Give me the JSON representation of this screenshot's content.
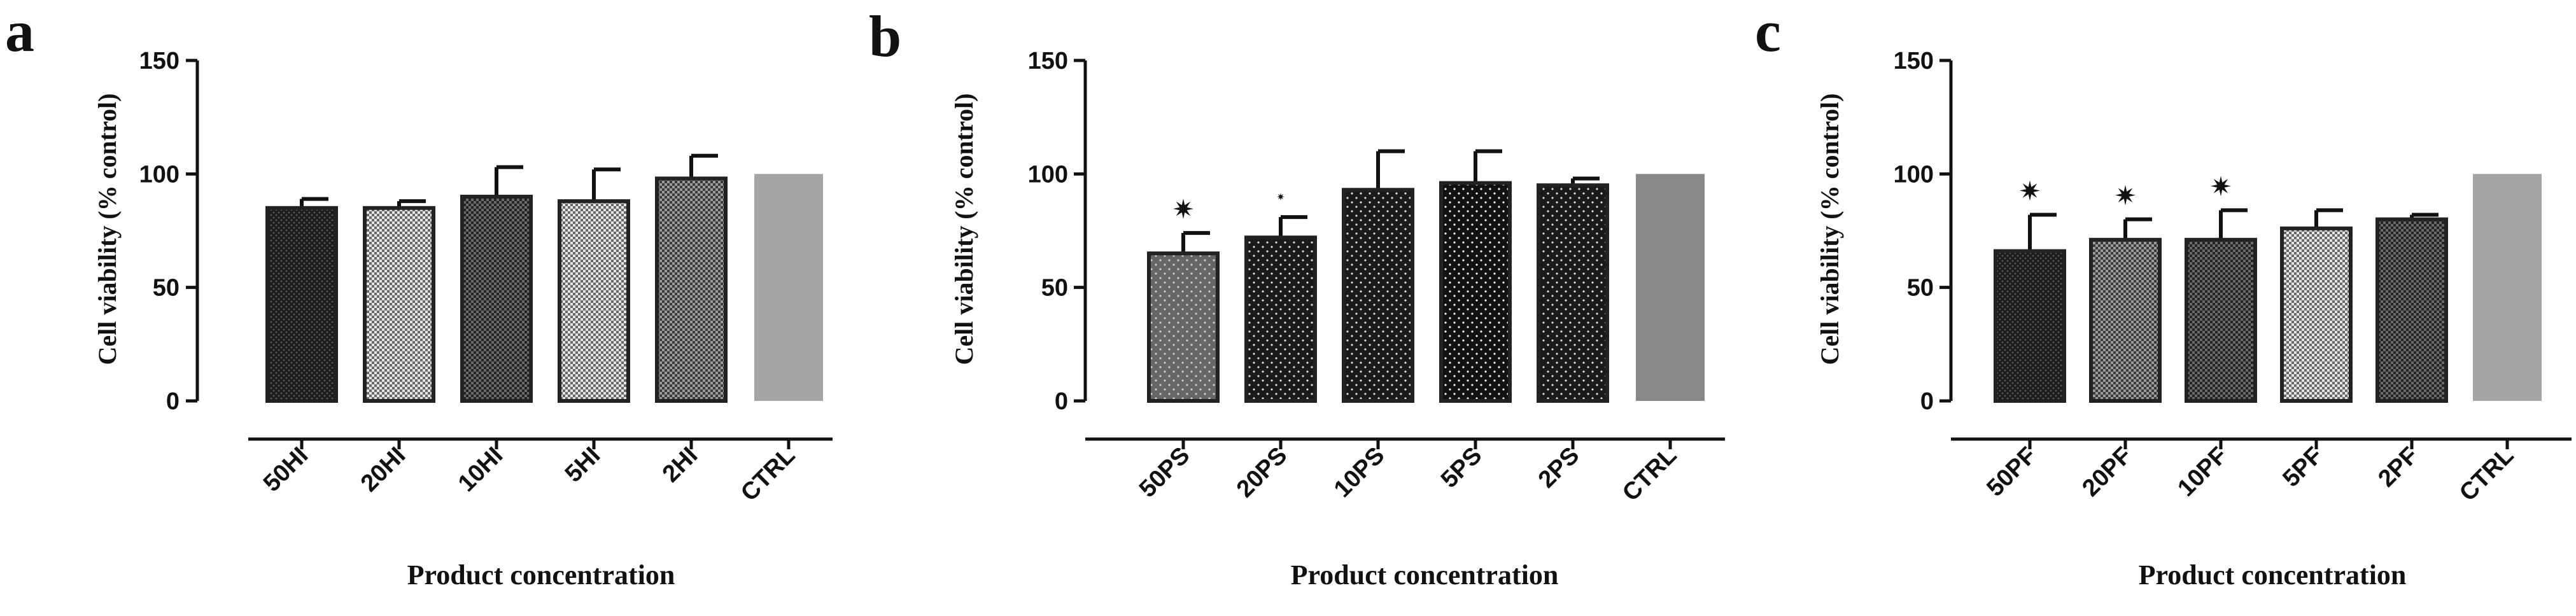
{
  "chart_data": [
    {
      "type": "bar",
      "panel": "a",
      "categories": [
        "50HI",
        "20HI",
        "10HI",
        "5HI",
        "2HI",
        "CTRL"
      ],
      "values": [
        85,
        85,
        90,
        88,
        98,
        100
      ],
      "errors": [
        4,
        3,
        13,
        14,
        10,
        0
      ],
      "significance": [
        "",
        "",
        "",
        "",
        "",
        ""
      ],
      "ylabel": "Cell viability (% control)",
      "xlabel": "Product concentration",
      "ylim": [
        0,
        150
      ],
      "yticks": [
        "0",
        "50",
        "100",
        "150"
      ],
      "bar_colors": [
        "#1c1c1c",
        "#a8a8a8",
        "#4a4a4a",
        "#c0c0c0",
        "#6e6e6e",
        "#a5a5a8"
      ],
      "bar_patterns": [
        "dots-dark",
        "checker-light",
        "checker-dark",
        "checker-light",
        "checker-mid",
        "solid"
      ],
      "grid": false
    },
    {
      "type": "bar",
      "panel": "b",
      "categories": [
        "50PS",
        "20PS",
        "10PS",
        "5PS",
        "2PS",
        "CTRL"
      ],
      "values": [
        65,
        72,
        93,
        96,
        95,
        100
      ],
      "errors": [
        9,
        9,
        17,
        14,
        3,
        0
      ],
      "significance": [
        "*",
        "*",
        "",
        "",
        "",
        ""
      ],
      "ylabel": "Cell viability (% control)",
      "xlabel": "Product concentration",
      "ylim": [
        0,
        150
      ],
      "yticks": [
        "0",
        "50",
        "100",
        "150"
      ],
      "bar_colors": [
        "#666666",
        "#1a1a1a",
        "#333333",
        "#d8d8d8",
        "#222222",
        "#888888"
      ],
      "bar_patterns": [
        "dots-sparse",
        "dots-sparse",
        "dots-sparse",
        "dots-sparse",
        "dots-sparse",
        "solid"
      ],
      "grid": false
    },
    {
      "type": "bar",
      "panel": "c",
      "categories": [
        "50PF",
        "20PF",
        "10PF",
        "5PF",
        "2PF",
        "CTRL"
      ],
      "values": [
        66,
        71,
        71,
        76,
        80,
        100
      ],
      "errors": [
        16,
        9,
        13,
        8,
        2,
        0
      ],
      "significance": [
        "*",
        "*",
        "*",
        "",
        "",
        ""
      ],
      "ylabel": "Cell viability (% control)",
      "xlabel": "Product concentration",
      "ylim": [
        0,
        150
      ],
      "yticks": [
        "0",
        "50",
        "100",
        "150"
      ],
      "bar_colors": [
        "#1c1c1c",
        "#9a9a9a",
        "#555555",
        "#c8c8c8",
        "#4a4a4a",
        "#a5a5a8"
      ],
      "bar_patterns": [
        "dots-dark",
        "checker-mid",
        "checker-dark",
        "checker-light",
        "checker-dark",
        "solid"
      ],
      "grid": false
    }
  ]
}
